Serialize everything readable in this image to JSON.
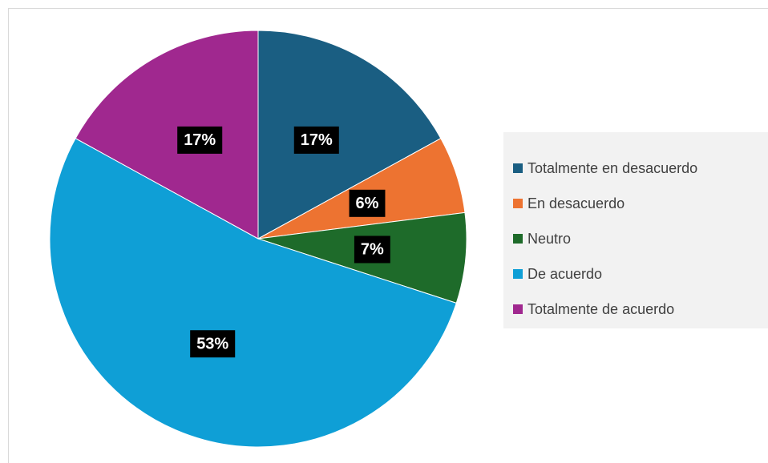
{
  "chart_data": {
    "type": "pie",
    "categories": [
      "Totalmente en desacuerdo",
      "En desacuerdo",
      "Neutro",
      "De acuerdo",
      "Totalmente de acuerdo"
    ],
    "values": [
      17,
      6,
      7,
      53,
      17
    ],
    "value_labels": [
      "17%",
      "6%",
      "7%",
      "53%",
      "17%"
    ],
    "colors": [
      "#1a5e82",
      "#ed7331",
      "#1e6b2a",
      "#0f9fd6",
      "#a0288f"
    ],
    "legend": "right"
  }
}
